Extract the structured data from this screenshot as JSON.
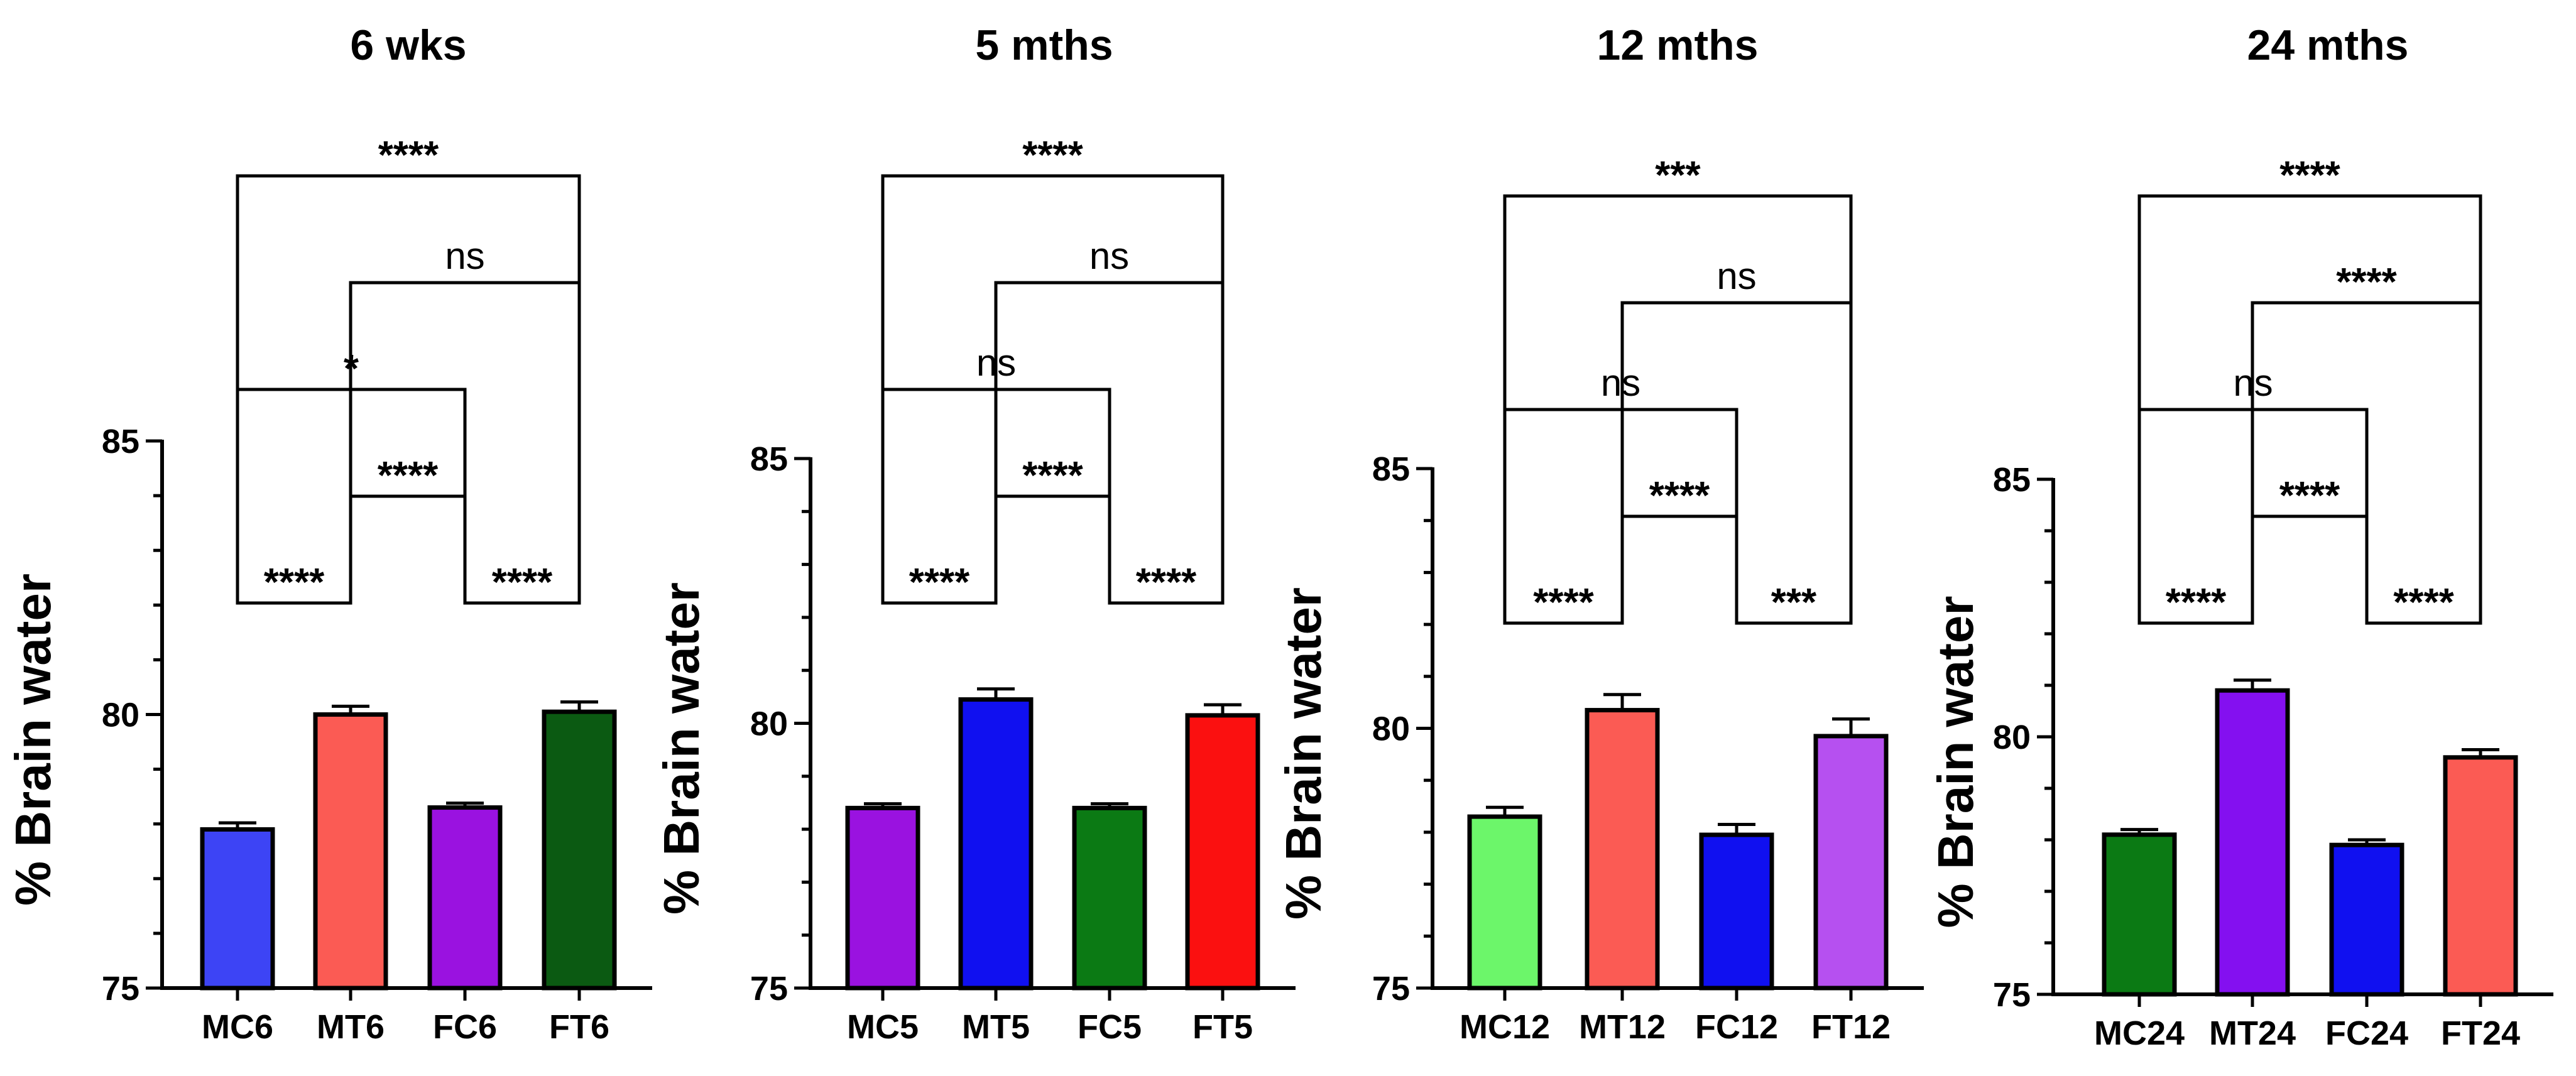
{
  "chart_data": [
    {
      "type": "bar",
      "title": "6 wks",
      "ylabel": "% Brain water",
      "xlabel": "",
      "ylim": [
        75,
        85
      ],
      "yticks": [
        75,
        80,
        85
      ],
      "categories": [
        "MC6",
        "MT6",
        "FC6",
        "FT6"
      ],
      "values": [
        77.9,
        80.0,
        78.3,
        80.05
      ],
      "errors": [
        0.12,
        0.15,
        0.08,
        0.18
      ],
      "colors": [
        "#3d44f5",
        "#fb5b54",
        "#9a12e0",
        "#0b5a12"
      ],
      "comparisons": [
        {
          "from": 0,
          "to": 3,
          "label": "****"
        },
        {
          "from": 1,
          "to": 3,
          "label": "ns"
        },
        {
          "from": 0,
          "to": 2,
          "label": "*"
        },
        {
          "from": 1,
          "to": 2,
          "label": "****"
        },
        {
          "from": 0,
          "to": 1,
          "label": "****"
        },
        {
          "from": 2,
          "to": 3,
          "label": "****"
        }
      ]
    },
    {
      "type": "bar",
      "title": "5 mths",
      "ylabel": "% Brain water",
      "xlabel": "",
      "ylim": [
        75,
        85
      ],
      "yticks": [
        75,
        80,
        85
      ],
      "categories": [
        "MC5",
        "MT5",
        "FC5",
        "FT5"
      ],
      "values": [
        78.4,
        80.45,
        78.4,
        80.15
      ],
      "errors": [
        0.08,
        0.2,
        0.08,
        0.2
      ],
      "colors": [
        "#9a12e0",
        "#1010f0",
        "#0b7a14",
        "#fb1010"
      ],
      "comparisons": [
        {
          "from": 0,
          "to": 3,
          "label": "****"
        },
        {
          "from": 1,
          "to": 3,
          "label": "ns"
        },
        {
          "from": 0,
          "to": 2,
          "label": "ns"
        },
        {
          "from": 1,
          "to": 2,
          "label": "****"
        },
        {
          "from": 0,
          "to": 1,
          "label": "****"
        },
        {
          "from": 2,
          "to": 3,
          "label": "****"
        }
      ]
    },
    {
      "type": "bar",
      "title": "12 mths",
      "ylabel": "% Brain water",
      "xlabel": "",
      "ylim": [
        75,
        85
      ],
      "yticks": [
        75,
        80,
        85
      ],
      "categories": [
        "MC12",
        "MT12",
        "FC12",
        "FT12"
      ],
      "values": [
        78.3,
        80.35,
        77.95,
        79.85
      ],
      "errors": [
        0.18,
        0.3,
        0.2,
        0.33
      ],
      "colors": [
        "#6cf66a",
        "#fb5b54",
        "#1010f0",
        "#b650f0"
      ],
      "comparisons": [
        {
          "from": 0,
          "to": 3,
          "label": "***"
        },
        {
          "from": 1,
          "to": 3,
          "label": "ns"
        },
        {
          "from": 0,
          "to": 2,
          "label": "ns"
        },
        {
          "from": 1,
          "to": 2,
          "label": "****"
        },
        {
          "from": 0,
          "to": 1,
          "label": "****"
        },
        {
          "from": 2,
          "to": 3,
          "label": "***"
        }
      ]
    },
    {
      "type": "bar",
      "title": "24 mths",
      "ylabel": "% Brain water",
      "xlabel": "",
      "ylim": [
        75,
        85
      ],
      "yticks": [
        75,
        80,
        85
      ],
      "categories": [
        "MC24",
        "MT24",
        "FC24",
        "FT24"
      ],
      "values": [
        78.1,
        80.9,
        77.9,
        79.6
      ],
      "errors": [
        0.1,
        0.2,
        0.1,
        0.15
      ],
      "colors": [
        "#0b7a14",
        "#8410f0",
        "#1010f0",
        "#fb5b54"
      ],
      "comparisons": [
        {
          "from": 0,
          "to": 3,
          "label": "****"
        },
        {
          "from": 1,
          "to": 3,
          "label": "****"
        },
        {
          "from": 0,
          "to": 2,
          "label": "ns"
        },
        {
          "from": 1,
          "to": 2,
          "label": "****"
        },
        {
          "from": 0,
          "to": 1,
          "label": "****"
        },
        {
          "from": 2,
          "to": 3,
          "label": "****"
        }
      ]
    }
  ]
}
